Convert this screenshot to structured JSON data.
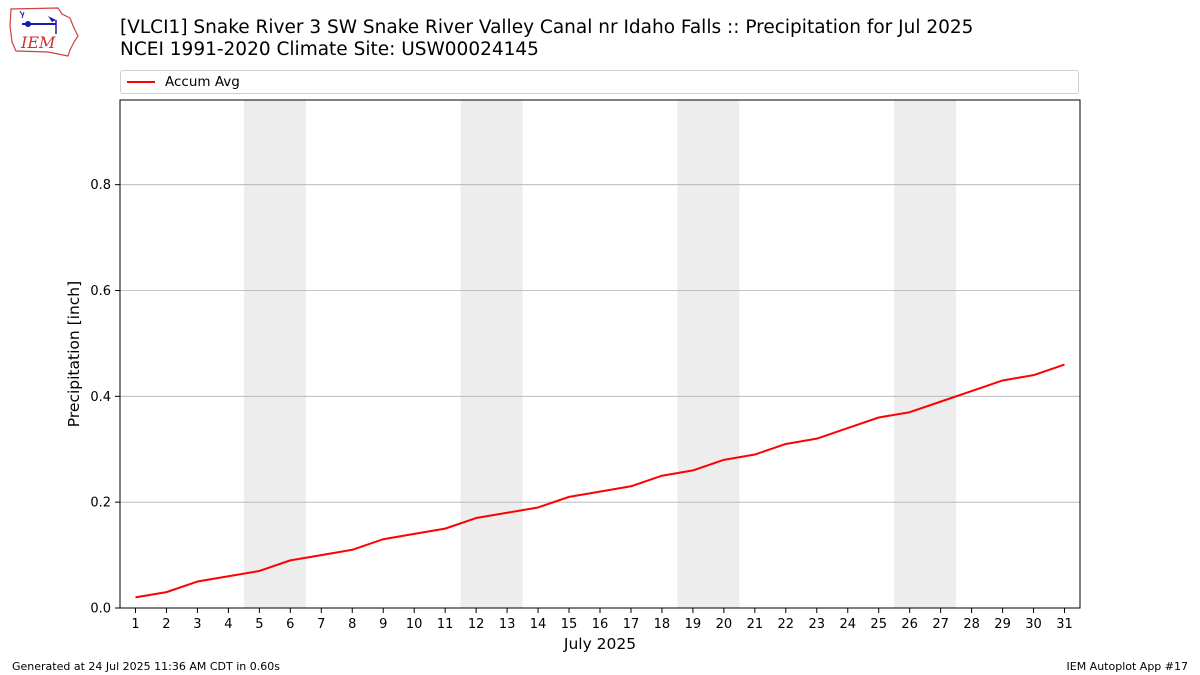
{
  "header": {
    "logo_text": "IEM",
    "title_line1": "[VLCI1] Snake River 3 SW Snake River Valley Canal nr Idaho Falls :: Precipitation for Jul 2025",
    "title_line2": "NCEI 1991-2020 Climate Site: USW00024145"
  },
  "footer": {
    "left": "Generated at 24 Jul 2025 11:36 AM CDT in 0.60s",
    "right": "IEM Autoplot App #17"
  },
  "colors": {
    "series": "#ff0000",
    "weekend_band": "#ededed",
    "grid": "#b0b0b0"
  },
  "chart_data": {
    "type": "line",
    "xlabel": "July 2025",
    "ylabel": "Precipitation [inch]",
    "x": [
      1,
      2,
      3,
      4,
      5,
      6,
      7,
      8,
      9,
      10,
      11,
      12,
      13,
      14,
      15,
      16,
      17,
      18,
      19,
      20,
      21,
      22,
      23,
      24,
      25,
      26,
      27,
      28,
      29,
      30,
      31
    ],
    "xlim": [
      0.5,
      31.5
    ],
    "ylim": [
      0,
      0.96
    ],
    "yticks": [
      0.0,
      0.2,
      0.4,
      0.6,
      0.8
    ],
    "ytick_labels": [
      "0.0",
      "0.2",
      "0.4",
      "0.6",
      "0.8"
    ],
    "grid": "horizontal",
    "legend_position": "top",
    "weekend_bands": [
      [
        5,
        6
      ],
      [
        12,
        13
      ],
      [
        19,
        20
      ],
      [
        26,
        27
      ]
    ],
    "series": [
      {
        "name": "Accum Avg",
        "color": "#ff0000",
        "values": [
          0.02,
          0.03,
          0.05,
          0.06,
          0.07,
          0.09,
          0.1,
          0.11,
          0.13,
          0.14,
          0.15,
          0.17,
          0.18,
          0.19,
          0.21,
          0.22,
          0.23,
          0.25,
          0.26,
          0.28,
          0.29,
          0.31,
          0.32,
          0.34,
          0.36,
          0.37,
          0.39,
          0.41,
          0.43,
          0.44,
          0.46
        ]
      }
    ]
  }
}
